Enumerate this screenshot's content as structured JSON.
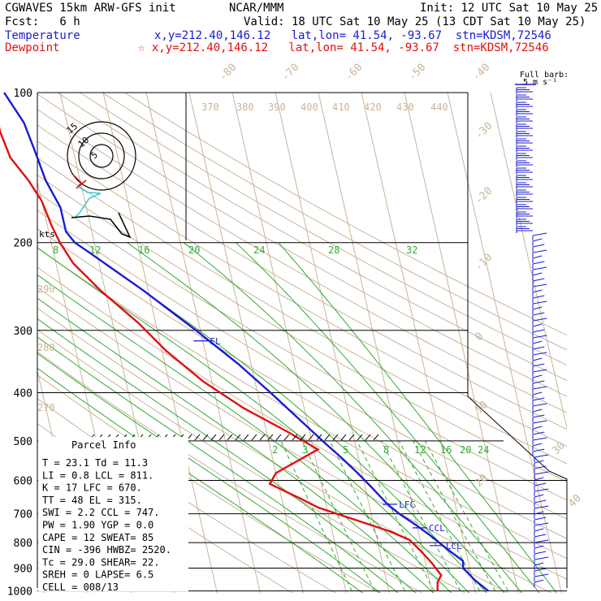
{
  "header": {
    "model": "CGWAVES 15km ARW-GFS init",
    "center": "NCAR/MMM",
    "init": "Init: 12 UTC Sat 10 May 25",
    "fcst": "Fcst:   6 h",
    "valid": "Valid: 18 UTC Sat 10 May 25 (13 CDT Sat 10 May 25)",
    "temp_label": "Temperature",
    "temp_coords": "x,y=212.40,146.12   lat,lon= 41.54, -93.67  stn=KDSM,72546",
    "dew_label": "Dewpoint",
    "dew_coords": "☆ x,y=212.40,146.12   lat,lon= 41.54, -93.67  stn=KDSM,72546"
  },
  "barb_legend": {
    "line1": "Full barb:",
    "line2": "5 m s⁻¹"
  },
  "hodograph": {
    "unit": "kts",
    "rings": [
      "5",
      "10",
      "15"
    ]
  },
  "parcel_info": {
    "title": "Parcel Info",
    "rows": [
      "T   =   23.1  Td =  11.3",
      "LI  =    0.8  LCL =  811.",
      "K   =     17  LFC =  670.",
      "TT  =     48  EL  =  315.",
      "SWI =    2.2  CCL =  747.",
      "PW  =   1.90  YGP =   0.0",
      "CAPE =    12  SWEAT=   85",
      "CIN =   -396  HWBZ= 2520.",
      "Tc  =   29.0  SHEAR=  22.",
      "SREH =     0  LAPSE=  6.5",
      "CELL = 008/13"
    ]
  },
  "chart_data": {
    "type": "line",
    "title": "",
    "y_axis": {
      "scale": "log-pressure",
      "unit": "hPa",
      "ticks": [
        100,
        200,
        300,
        400,
        500,
        600,
        700,
        800,
        900,
        1000
      ]
    },
    "isotherm_labels": [
      "-80",
      "-70",
      "-60",
      "-50",
      "-40",
      "-30",
      "-20",
      "-10",
      "0",
      "10",
      "20",
      "30",
      "40"
    ],
    "dry_adiabat_labels": [
      "370",
      "380",
      "390",
      "400",
      "410",
      "420",
      "430",
      "440",
      "290",
      "280",
      "270"
    ],
    "moist_adiabat_labels": [
      "8",
      "12",
      "16",
      "20",
      "24",
      "28",
      "32"
    ],
    "mixing_ratio_labels": [
      "2",
      "3",
      "5",
      "8",
      "12",
      "16",
      "20",
      "24"
    ],
    "levels": [
      {
        "name": "EL",
        "pressure": 315
      },
      {
        "name": "LFC",
        "pressure": 670
      },
      {
        "name": "CCL",
        "pressure": 747
      },
      {
        "name": "LCL",
        "pressure": 811
      }
    ],
    "series": [
      {
        "name": "Temperature",
        "color": "#1a1ad6",
        "points": [
          [
            1000,
            23.1
          ],
          [
            950,
            20.5
          ],
          [
            900,
            18.5
          ],
          [
            870,
            18.8
          ],
          [
            820,
            15.5
          ],
          [
            780,
            13
          ],
          [
            740,
            10
          ],
          [
            700,
            6.5
          ],
          [
            670,
            4.3
          ],
          [
            620,
            1.5
          ],
          [
            580,
            -1
          ],
          [
            540,
            -4
          ],
          [
            505,
            -7
          ],
          [
            460,
            -11
          ],
          [
            400,
            -17
          ],
          [
            350,
            -23
          ],
          [
            300,
            -31
          ],
          [
            250,
            -41
          ],
          [
            210,
            -51.5
          ],
          [
            200,
            -54.5
          ],
          [
            190,
            -56
          ],
          [
            170,
            -56
          ],
          [
            150,
            -58
          ],
          [
            130,
            -59
          ],
          [
            115,
            -60
          ],
          [
            100,
            -63
          ]
        ]
      },
      {
        "name": "Dewpoint",
        "color": "#e01010",
        "points": [
          [
            1000,
            11.3
          ],
          [
            960,
            11.8
          ],
          [
            930,
            13.0
          ],
          [
            880,
            11.5
          ],
          [
            830,
            9.5
          ],
          [
            790,
            7.5
          ],
          [
            760,
            3.5
          ],
          [
            720,
            -4
          ],
          [
            700,
            -8
          ],
          [
            680,
            -12
          ],
          [
            650,
            -16
          ],
          [
            610,
            -22
          ],
          [
            580,
            -20
          ],
          [
            520,
            -9
          ],
          [
            480,
            -15
          ],
          [
            430,
            -24
          ],
          [
            380,
            -32
          ],
          [
            330,
            -39
          ],
          [
            290,
            -44
          ],
          [
            250,
            -51
          ],
          [
            220,
            -56
          ],
          [
            200,
            -58
          ],
          [
            185,
            -59
          ],
          [
            165,
            -60
          ],
          [
            150,
            -62
          ],
          [
            135,
            -65
          ],
          [
            120,
            -66
          ],
          [
            100,
            -66
          ]
        ]
      }
    ]
  }
}
